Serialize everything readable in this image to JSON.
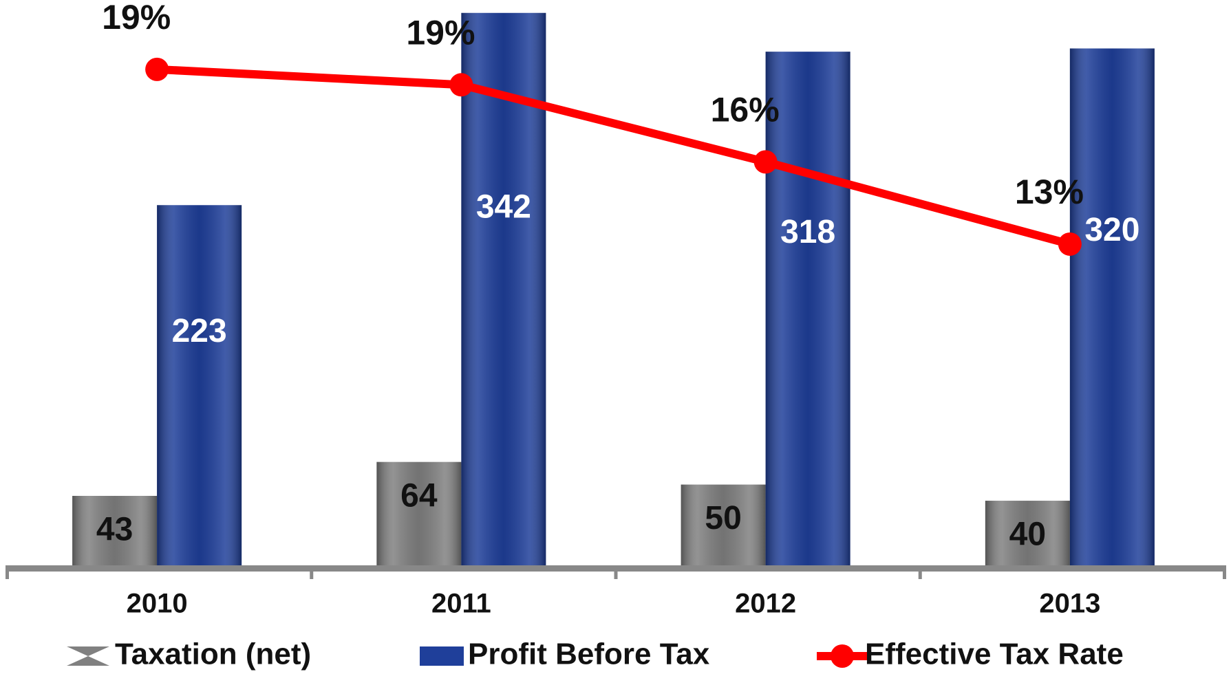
{
  "chart_data": {
    "type": "bar",
    "categories": [
      "2010",
      "2011",
      "2012",
      "2013"
    ],
    "series": [
      {
        "name": "Taxation (net)",
        "color": "#808080",
        "values": [
          43,
          64,
          50,
          40
        ]
      },
      {
        "name": "Profit Before Tax",
        "color": "#1f3f9a",
        "values": [
          223,
          342,
          318,
          320
        ]
      },
      {
        "name": "Effective Tax Rate",
        "color": "#ff0000",
        "type": "line",
        "axis": "y2",
        "values": [
          19.3,
          18.7,
          15.7,
          12.5
        ],
        "value_labels": [
          "19%",
          "19%",
          "16%",
          "13%"
        ]
      }
    ],
    "ylim": [
      0,
      350
    ],
    "y2lim": [
      0,
      22
    ],
    "legend": "bottom"
  }
}
